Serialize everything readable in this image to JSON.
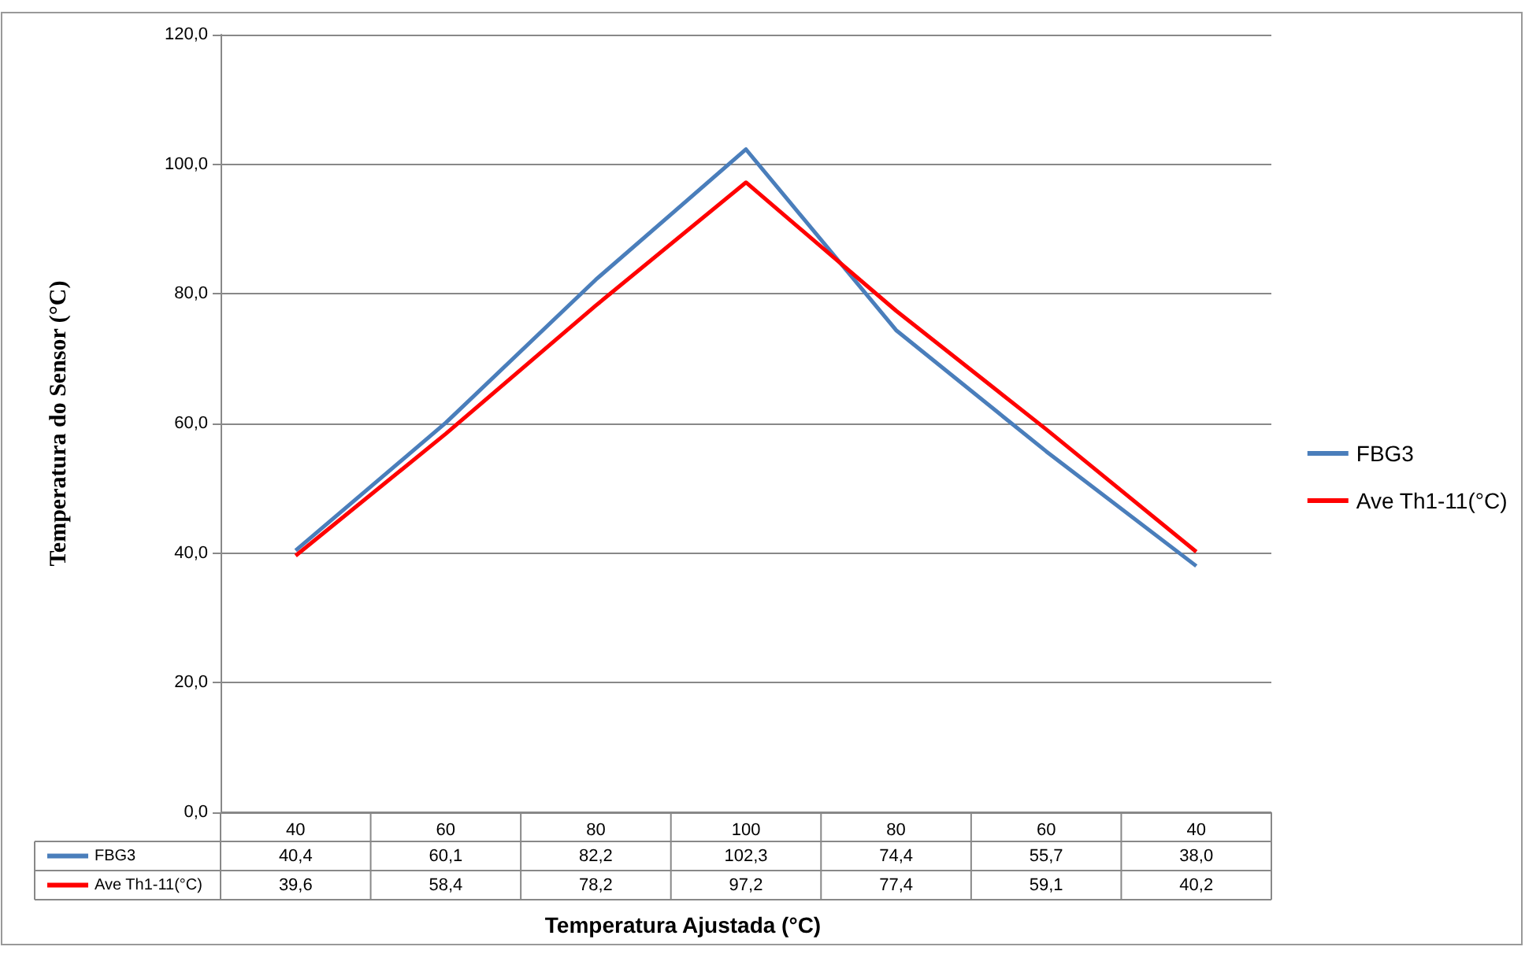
{
  "chart_data": {
    "type": "line",
    "xlabel": "Temperatura Ajustada (°C)",
    "ylabel": "Temperatura do Sensor (°C)",
    "categories": [
      "40",
      "60",
      "80",
      "100",
      "80",
      "60",
      "40"
    ],
    "series": [
      {
        "name": "FBG3",
        "color": "#4a7ebb",
        "values": [
          40.4,
          60.1,
          82.2,
          102.3,
          74.4,
          55.7,
          38.0
        ],
        "value_labels": [
          "40,4",
          "60,1",
          "82,2",
          "102,3",
          "74,4",
          "55,7",
          "38,0"
        ]
      },
      {
        "name": "Ave Th1-11(°C)",
        "color": "#ff0000",
        "values": [
          39.6,
          58.4,
          78.2,
          97.2,
          77.4,
          59.1,
          40.2
        ],
        "value_labels": [
          "39,6",
          "58,4",
          "78,2",
          "97,2",
          "77,4",
          "59,1",
          "40,2"
        ]
      }
    ],
    "ylim": [
      0,
      120
    ],
    "yticks": [
      {
        "value": 0,
        "label": "0,0"
      },
      {
        "value": 20,
        "label": "20,0"
      },
      {
        "value": 40,
        "label": "40,0"
      },
      {
        "value": 60,
        "label": "60,0"
      },
      {
        "value": 80,
        "label": "80,0"
      },
      {
        "value": 100,
        "label": "100,0"
      },
      {
        "value": 120,
        "label": "120,0"
      }
    ],
    "grid": "y",
    "legend": "right",
    "marker": "none",
    "line_style": "solid"
  }
}
